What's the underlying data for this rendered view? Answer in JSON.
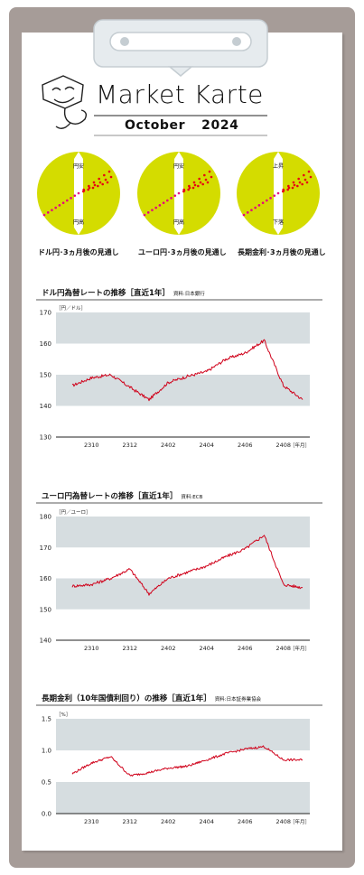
{
  "header": {
    "title": "Market Karte",
    "month": "October",
    "year": "2024"
  },
  "colors": {
    "board": "#a69c98",
    "circle": "#d4dc00",
    "band": "#d6dde0",
    "line": "#d0021b",
    "dots_past": "#e5007f",
    "dots_future": "#e60012"
  },
  "outlook": [
    {
      "top": "円安",
      "bottom": "円高",
      "label": "ドル円･3ヵ月後の見通し"
    },
    {
      "top": "円安",
      "bottom": "円高",
      "label": "ユーロ円･3ヵ月後の見通し"
    },
    {
      "top": "上昇",
      "bottom": "下落",
      "label": "長期金利･3ヵ月後の見通し"
    }
  ],
  "charts": [
    {
      "title": "ドル円為替レートの推移［直近1年］",
      "source": "資料:日本銀行"
    },
    {
      "title": "ユーロ円為替レートの推移［直近1年］",
      "source": "資料:ECB"
    },
    {
      "title": "長期金利（10年国債利回り）の推移［直近1年］",
      "source": "資料:日本証券業協会"
    }
  ],
  "chart_data": [
    {
      "type": "line",
      "title": "ドル円為替レートの推移［直近1年］",
      "ylabel": "［円／ドル］",
      "xlabel": "［年月］",
      "ylim": [
        130,
        170
      ],
      "yticks": [
        "130",
        "140",
        "150",
        "160",
        "170"
      ],
      "xticks": [
        "2310",
        "2312",
        "2402",
        "2404",
        "2406",
        "2408"
      ],
      "x": [
        "2309",
        "2310",
        "2311",
        "2312",
        "2401",
        "2402",
        "2403",
        "2404",
        "2405",
        "2406",
        "2407",
        "2408",
        "2409"
      ],
      "values": [
        146.5,
        149,
        150,
        146,
        142,
        147.5,
        149.5,
        151,
        155,
        157,
        161,
        146.5,
        142
      ]
    },
    {
      "type": "line",
      "title": "ユーロ円為替レートの推移［直近1年］",
      "ylabel": "［円／ユーロ］",
      "xlabel": "［年月］",
      "ylim": [
        140,
        180
      ],
      "yticks": [
        "140",
        "150",
        "160",
        "170",
        "180"
      ],
      "xticks": [
        "2310",
        "2312",
        "2402",
        "2404",
        "2406",
        "2408"
      ],
      "x": [
        "2309",
        "2310",
        "2311",
        "2312",
        "2401",
        "2402",
        "2403",
        "2404",
        "2405",
        "2406",
        "2407",
        "2408",
        "2409"
      ],
      "values": [
        157.5,
        158,
        160,
        163,
        155,
        160,
        162,
        164,
        167,
        169.5,
        174,
        158,
        157
      ]
    },
    {
      "type": "line",
      "title": "長期金利（10年国債利回り）の推移［直近1年］",
      "ylabel": "［%］",
      "xlabel": "［年月］",
      "ylim": [
        0,
        1.5
      ],
      "yticks": [
        "0.0",
        "0.5",
        "1.0",
        "1.5"
      ],
      "xticks": [
        "2310",
        "2312",
        "2402",
        "2404",
        "2406",
        "2408"
      ],
      "x": [
        "2309",
        "2310",
        "2311",
        "2312",
        "2401",
        "2402",
        "2403",
        "2404",
        "2405",
        "2406",
        "2407",
        "2408",
        "2409"
      ],
      "values": [
        0.63,
        0.8,
        0.9,
        0.6,
        0.65,
        0.72,
        0.75,
        0.85,
        0.95,
        1.02,
        1.06,
        0.85,
        0.85
      ]
    }
  ]
}
